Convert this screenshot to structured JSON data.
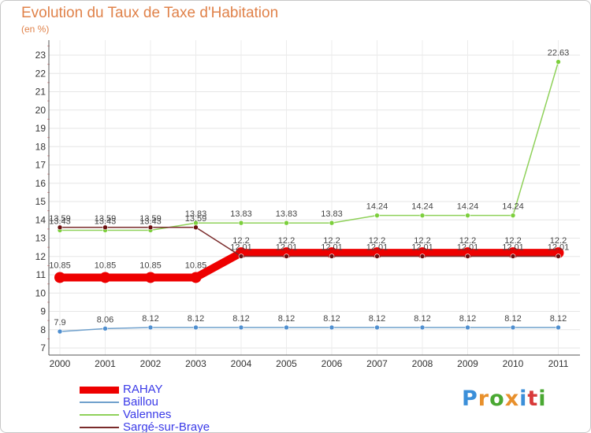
{
  "title": "Evolution du Taux de Taxe d'Habitation",
  "subtitle": "(en %)",
  "chart_data": {
    "type": "line",
    "title": "Evolution du Taux de Taxe d'Habitation",
    "ylabel": "(en %)",
    "xlabel": "",
    "categories": [
      "2000",
      "2001",
      "2002",
      "2003",
      "2004",
      "2005",
      "2006",
      "2007",
      "2008",
      "2009",
      "2010",
      "2011"
    ],
    "yticks": [
      "7",
      "8",
      "9",
      "10",
      "11",
      "12",
      "13",
      "14",
      "15",
      "16",
      "17",
      "18",
      "19",
      "20",
      "21",
      "22",
      "23"
    ],
    "ylim": [
      7,
      23.5
    ],
    "grid": true,
    "legend_position": "bottom-left",
    "series": [
      {
        "name": "Valennes",
        "color": "#8fd15a",
        "marker": "#7ccf3c",
        "values": [
          13.43,
          13.43,
          13.43,
          13.83,
          13.83,
          13.83,
          13.83,
          14.24,
          14.24,
          14.24,
          14.24,
          22.63
        ],
        "labels": [
          "13.43",
          "13.43",
          "13.43",
          "13.83",
          "13.83",
          "13.83",
          "13.83",
          "14.24",
          "14.24",
          "14.24",
          "14.24",
          "22.63"
        ]
      },
      {
        "name": "Baillou",
        "color": "#6fa0cc",
        "marker": "#4f8fd0",
        "values": [
          7.9,
          8.06,
          8.12,
          8.12,
          8.12,
          8.12,
          8.12,
          8.12,
          8.12,
          8.12,
          8.12,
          8.12
        ],
        "labels": [
          "7.9",
          "8.06",
          "8.12",
          "8.12",
          "8.12",
          "8.12",
          "8.12",
          "8.12",
          "8.12",
          "8.12",
          "8.12",
          "8.12"
        ]
      },
      {
        "name": "RAHAY",
        "color": "#ee0000",
        "marker": "#ee0000",
        "values": [
          10.85,
          10.85,
          10.85,
          10.85,
          12.2,
          12.2,
          12.2,
          12.2,
          12.2,
          12.2,
          12.2,
          12.2
        ],
        "labels": [
          "10.85",
          "10.85",
          "10.85",
          "10.85",
          "12.2",
          "12.2",
          "12.2",
          "12.2",
          "12.2",
          "12.2",
          "12.2",
          "12.2"
        ]
      },
      {
        "name": "Sargé-sur-Braye",
        "color": "#7a2b2b",
        "marker": "#6b0f0f",
        "values": [
          13.59,
          13.59,
          13.59,
          13.59,
          12.01,
          12.01,
          12.01,
          12.01,
          12.01,
          12.01,
          12.01,
          12.01
        ],
        "labels": [
          "13.59",
          "13.59",
          "13.59",
          "13.59",
          "12.01",
          "12.01",
          "12.01",
          "12.01",
          "12.01",
          "12.01",
          "12.01",
          "12.01"
        ]
      }
    ]
  },
  "legend": [
    {
      "label": "RAHAY",
      "color": "#ee0000"
    },
    {
      "label": "Baillou",
      "color": "#6fa0cc"
    },
    {
      "label": "Valennes",
      "color": "#8fd15a"
    },
    {
      "label": "Sargé-sur-Braye",
      "color": "#7a2b2b"
    }
  ],
  "logo": {
    "letters": [
      "P",
      "r",
      "o",
      "x",
      "i",
      "t",
      "i"
    ],
    "colors": [
      "#3b8fd9",
      "#e8902c",
      "#4aa832",
      "#e8902c",
      "#3b8fd9",
      "#d83a3a",
      "#4aa832"
    ]
  }
}
